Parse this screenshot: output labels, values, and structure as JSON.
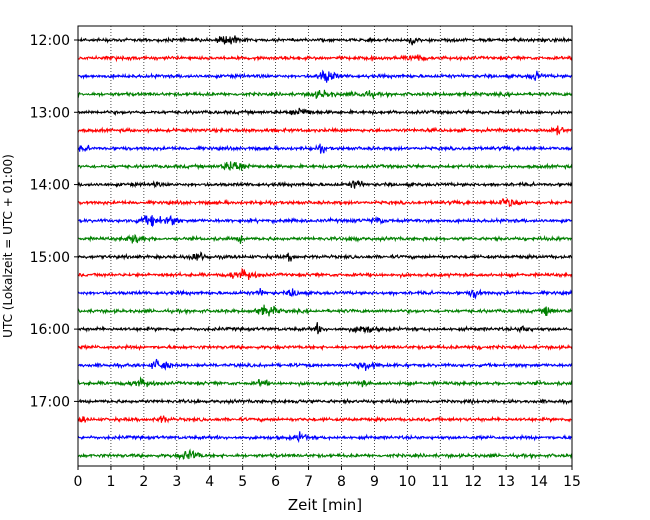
{
  "chart_data": {
    "type": "line",
    "xlabel": "Zeit  [min]",
    "ylabel": "UTC (Lokalzeit = UTC + 01:00)",
    "xlim": [
      0,
      15
    ],
    "x_ticks": [
      "0",
      "1",
      "2",
      "3",
      "4",
      "5",
      "6",
      "7",
      "8",
      "9",
      "10",
      "11",
      "12",
      "13",
      "14",
      "15"
    ],
    "y_ticks": [
      "12:00",
      "13:00",
      "14:00",
      "15:00",
      "16:00",
      "17:00"
    ],
    "trace_minutes": 15,
    "trace_start_times": [
      "12:00",
      "12:15",
      "12:30",
      "12:45",
      "13:00",
      "13:15",
      "13:30",
      "13:45",
      "14:00",
      "14:15",
      "14:30",
      "14:45",
      "15:00",
      "15:15",
      "15:30",
      "15:45",
      "16:00",
      "16:15",
      "16:30",
      "16:45",
      "17:00",
      "17:15",
      "17:30",
      "17:45"
    ],
    "trace_colors": [
      "#000000",
      "#ff0000",
      "#0000ff",
      "#008000"
    ],
    "grid": "vertical-dotted",
    "legend": "none"
  }
}
